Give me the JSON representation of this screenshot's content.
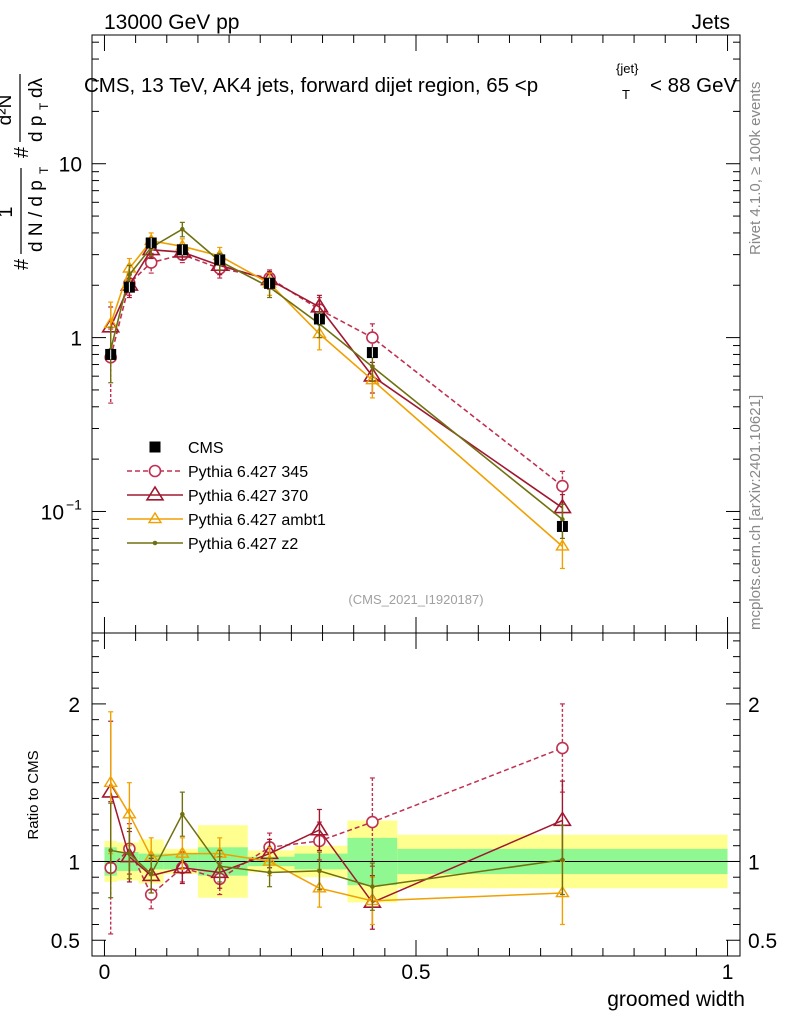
{
  "header": {
    "energy_label": "13000 GeV pp",
    "category_label": "Jets",
    "title": "CMS, 13 TeV, AK4 jets, forward dijet region, 65 <p",
    "title_sub": "T",
    "title_sup": "{jet}",
    "title_tail": "< 88 GeV"
  },
  "side": {
    "rivet": "Rivet 4.1.0, ≥ 100k events",
    "mcplots": "mcplots.cern.ch [arXiv:2401.10621]"
  },
  "watermark": "(CMS_2021_I1920187)",
  "axes": {
    "ylabel_main": {
      "hash1": "#",
      "one": "1",
      "dn": "d N / d p",
      "dn_sub": "T",
      "hash2": "#",
      "d2n": "d²N",
      "dpt": "d p",
      "dpt_sub": "T",
      "dlambda": "dλ"
    },
    "ylabel_ratio": "Ratio to CMS",
    "xlabel": "groomed width",
    "main_ticks": [
      {
        "value": 0.1,
        "label": "10",
        "sup": "−1"
      },
      {
        "value": 1,
        "label": "1",
        "sup": ""
      },
      {
        "value": 10,
        "label": "10",
        "sup": ""
      }
    ],
    "ratio_ticks": [
      {
        "value": 0.5,
        "label": "0.5"
      },
      {
        "value": 1,
        "label": "1"
      },
      {
        "value": 2,
        "label": "2"
      }
    ],
    "x_ticks": [
      {
        "value": 0,
        "label": "0"
      },
      {
        "value": 0.5,
        "label": "0.5"
      },
      {
        "value": 1,
        "label": "1"
      }
    ]
  },
  "chart_data": {
    "type": "line",
    "title": "CMS, 13 TeV, AK4 jets, forward dijet region, 65 < pT^{jet} < 88 GeV",
    "xlabel": "groomed width",
    "ylabel": "1/(dN/dpT) d²N/(dpT dλ)",
    "yscale": "log",
    "xlim": [
      -0.02,
      1.02
    ],
    "ylim": [
      0.02,
      55
    ],
    "ratio_ylim": [
      0.4,
      2.45
    ],
    "ratio_ylabel": "Ratio to CMS",
    "data": {
      "name": "CMS",
      "x": [
        0.01,
        0.04,
        0.075,
        0.125,
        0.185,
        0.265,
        0.345,
        0.43,
        0.735
      ],
      "y": [
        0.8,
        1.95,
        3.5,
        3.2,
        2.8,
        2.05,
        1.28,
        0.82,
        0.082
      ],
      "bins": [
        [
          0,
          0.02
        ],
        [
          0.02,
          0.055
        ],
        [
          0.055,
          0.095
        ],
        [
          0.095,
          0.15
        ],
        [
          0.15,
          0.23
        ],
        [
          0.23,
          0.305
        ],
        [
          0.305,
          0.39
        ],
        [
          0.39,
          0.47
        ],
        [
          0.47,
          1.0
        ]
      ],
      "band_inner": [
        0.09,
        0.06,
        0.05,
        0.05,
        0.09,
        0.03,
        0.05,
        0.15,
        0.08
      ],
      "band_outer": [
        0.13,
        0.12,
        0.14,
        0.08,
        0.23,
        0.07,
        0.1,
        0.26,
        0.17
      ]
    },
    "series": [
      {
        "name": "Pythia 6.427 345",
        "color": "#c03050",
        "marker": "circle",
        "dashed": true,
        "x": [
          0.01,
          0.04,
          0.075,
          0.125,
          0.185,
          0.265,
          0.345,
          0.43,
          0.735
        ],
        "y": [
          0.77,
          2.05,
          2.7,
          3.0,
          2.5,
          2.2,
          1.45,
          1.0,
          0.14
        ],
        "err": [
          0.35,
          0.3,
          0.35,
          0.3,
          0.3,
          0.25,
          0.25,
          0.2,
          0.03
        ],
        "ratio": [
          0.96,
          1.08,
          0.79,
          0.96,
          0.89,
          1.09,
          1.13,
          1.25,
          1.72
        ],
        "ratio_err": [
          0.42,
          0.16,
          0.09,
          0.09,
          0.1,
          0.09,
          0.12,
          0.28,
          0.28
        ]
      },
      {
        "name": "Pythia 6.427 370",
        "color": "#a01830",
        "marker": "triangle",
        "dashed": false,
        "x": [
          0.01,
          0.04,
          0.075,
          0.125,
          0.185,
          0.265,
          0.345,
          0.43,
          0.735
        ],
        "y": [
          1.15,
          2.0,
          3.2,
          3.1,
          2.6,
          2.15,
          1.5,
          0.6,
          0.105
        ],
        "err": [
          0.35,
          0.3,
          0.35,
          0.3,
          0.3,
          0.25,
          0.25,
          0.12,
          0.02
        ],
        "ratio": [
          1.44,
          1.03,
          0.91,
          0.96,
          0.93,
          1.05,
          1.2,
          0.74,
          1.26
        ],
        "ratio_err": [
          0.45,
          0.16,
          0.11,
          0.1,
          0.1,
          0.09,
          0.13,
          0.17,
          0.25
        ]
      },
      {
        "name": "Pythia 6.427 ambt1",
        "color": "#f0a000",
        "marker": "triangle-small",
        "dashed": false,
        "x": [
          0.01,
          0.04,
          0.075,
          0.125,
          0.185,
          0.265,
          0.345,
          0.43,
          0.735
        ],
        "y": [
          1.2,
          2.5,
          3.6,
          3.35,
          2.95,
          2.05,
          1.05,
          0.57,
          0.063
        ],
        "err": [
          0.4,
          0.35,
          0.4,
          0.35,
          0.35,
          0.3,
          0.2,
          0.12,
          0.016
        ],
        "ratio": [
          1.5,
          1.3,
          1.03,
          1.05,
          1.05,
          1.0,
          0.83,
          0.75,
          0.8
        ],
        "ratio_err": [
          0.45,
          0.2,
          0.12,
          0.1,
          0.1,
          0.09,
          0.12,
          0.15,
          0.2
        ]
      },
      {
        "name": "Pythia 6.427 z2",
        "color": "#707010",
        "marker": "dot",
        "dashed": false,
        "x": [
          0.01,
          0.04,
          0.075,
          0.125,
          0.185,
          0.265,
          0.345,
          0.43,
          0.735
        ],
        "y": [
          0.85,
          2.3,
          3.3,
          4.2,
          2.75,
          1.95,
          1.2,
          0.68,
          0.09
        ],
        "err": [
          0.3,
          0.3,
          0.35,
          0.4,
          0.3,
          0.25,
          0.2,
          0.12,
          0.02
        ],
        "ratio": [
          1.07,
          1.05,
          0.92,
          1.3,
          0.97,
          0.93,
          0.94,
          0.84,
          1.01
        ],
        "ratio_err": [
          0.3,
          0.16,
          0.12,
          0.14,
          0.1,
          0.09,
          0.12,
          0.15,
          0.22
        ]
      }
    ],
    "legend": [
      "CMS",
      "Pythia 6.427 345",
      "Pythia 6.427 370",
      "Pythia 6.427 ambt1",
      "Pythia 6.427 z2"
    ],
    "legend_position": "lower-left",
    "colors": {
      "band_inner": "#90f890",
      "band_outer": "#ffff90",
      "data": "#000000"
    }
  }
}
